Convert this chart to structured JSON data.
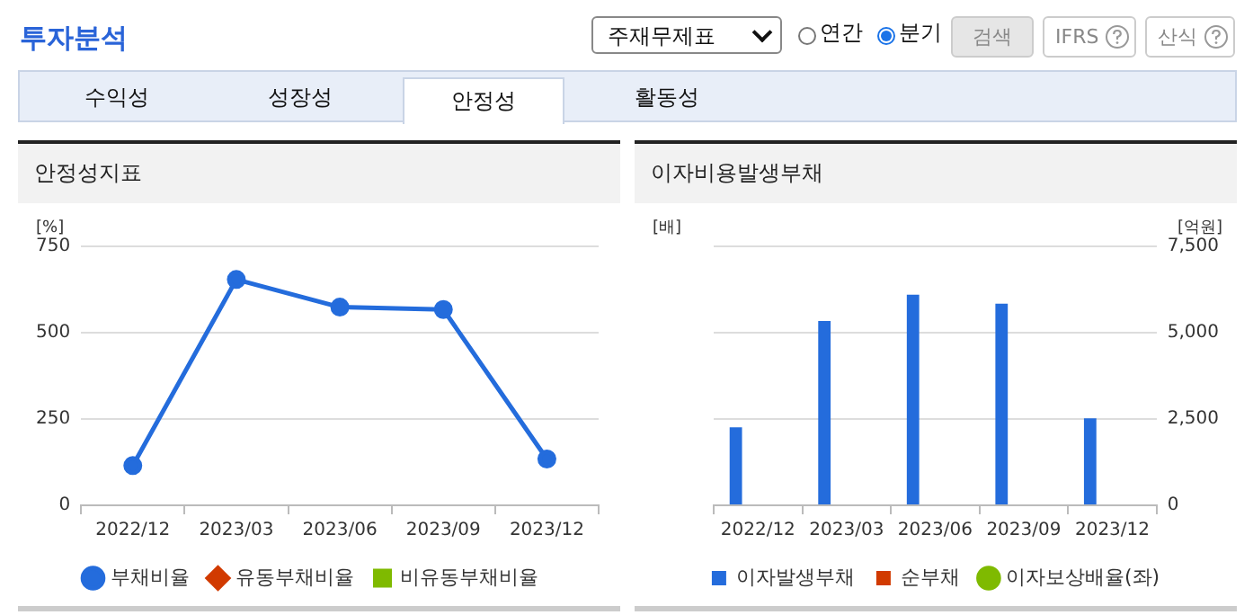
{
  "chart_data": [
    {
      "type": "other",
      "title": "투자분석",
      "annotations": [
        "주재무제표",
        "연간",
        "분기",
        "검색",
        "IFRS",
        "산식",
        "수익성",
        "성장성",
        "안정성",
        "활동성"
      ]
    },
    {
      "type": "line",
      "title": "안정성지표",
      "ylabel": "[%]",
      "categories": [
        "2022/12",
        "2023/03",
        "2023/06",
        "2023/09",
        "2023/12"
      ],
      "series": [
        {
          "name": "부채비율",
          "color": "#246cdc",
          "marker": "circle",
          "values": [
            115,
            654,
            574,
            567,
            134
          ]
        },
        {
          "name": "유동부채비율",
          "color": "#d13a00",
          "marker": "diamond",
          "values": [
            null,
            null,
            null,
            null,
            null
          ]
        },
        {
          "name": "비유동부채비율",
          "color": "#7fba00",
          "marker": "square",
          "values": [
            null,
            null,
            null,
            null,
            null
          ]
        }
      ],
      "ylim": [
        0,
        750
      ],
      "yticks": [
        0,
        250,
        500,
        750
      ],
      "grid": "y",
      "legend": "bottom"
    },
    {
      "type": "bar",
      "title": "이자비용발생부채",
      "ylabel": "[배]",
      "y2label": "[억원]",
      "categories": [
        "2022/12",
        "2023/03",
        "2023/06",
        "2023/09",
        "2023/12"
      ],
      "series": [
        {
          "name": "이자발생부채",
          "color": "#246cdc",
          "axis": "y2",
          "values": [
            2260,
            5340,
            6100,
            5840,
            2520
          ]
        },
        {
          "name": "순부채",
          "color": "#d13a00",
          "axis": "y2",
          "values": [
            null,
            null,
            null,
            null,
            null
          ]
        },
        {
          "name": "이자보상배율(좌)",
          "type": "line",
          "color": "#7fba00",
          "marker": "circle",
          "values": [
            null,
            null,
            null,
            null,
            null
          ]
        }
      ],
      "y2lim": [
        0,
        7500
      ],
      "y2ticks": [
        0,
        {
          "value": 2500,
          "label": "2,500"
        },
        {
          "value": 5000,
          "label": "5,000"
        },
        {
          "value": 7500,
          "label": "7,500"
        }
      ],
      "grid": "y",
      "legend": "bottom"
    }
  ]
}
